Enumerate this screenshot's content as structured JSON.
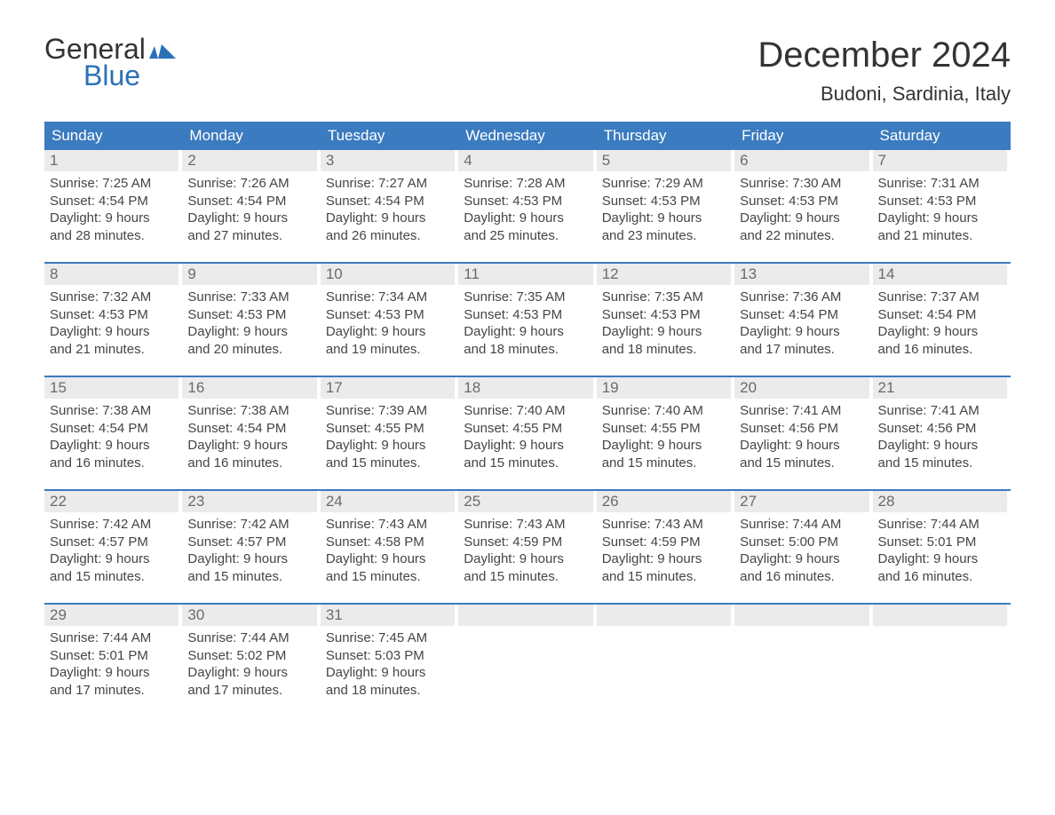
{
  "logo": {
    "line1": "General",
    "line2": "Blue"
  },
  "title": "December 2024",
  "location": "Budoni, Sardinia, Italy",
  "colors": {
    "header_bg": "#3b7bbf",
    "header_text": "#ffffff",
    "daynum_bg": "#ebebeb",
    "daynum_text": "#6b6b6b",
    "body_text": "#454545",
    "accent": "#2a71b8",
    "page_bg": "#ffffff",
    "week_border": "#3b7bbf"
  },
  "typography": {
    "title_fontsize": 40,
    "location_fontsize": 22,
    "dayhead_fontsize": 17,
    "daynum_fontsize": 17,
    "body_fontsize": 15
  },
  "day_headers": [
    "Sunday",
    "Monday",
    "Tuesday",
    "Wednesday",
    "Thursday",
    "Friday",
    "Saturday"
  ],
  "weeks": [
    [
      {
        "n": "1",
        "sunrise": "Sunrise: 7:25 AM",
        "sunset": "Sunset: 4:54 PM",
        "dl1": "Daylight: 9 hours",
        "dl2": "and 28 minutes."
      },
      {
        "n": "2",
        "sunrise": "Sunrise: 7:26 AM",
        "sunset": "Sunset: 4:54 PM",
        "dl1": "Daylight: 9 hours",
        "dl2": "and 27 minutes."
      },
      {
        "n": "3",
        "sunrise": "Sunrise: 7:27 AM",
        "sunset": "Sunset: 4:54 PM",
        "dl1": "Daylight: 9 hours",
        "dl2": "and 26 minutes."
      },
      {
        "n": "4",
        "sunrise": "Sunrise: 7:28 AM",
        "sunset": "Sunset: 4:53 PM",
        "dl1": "Daylight: 9 hours",
        "dl2": "and 25 minutes."
      },
      {
        "n": "5",
        "sunrise": "Sunrise: 7:29 AM",
        "sunset": "Sunset: 4:53 PM",
        "dl1": "Daylight: 9 hours",
        "dl2": "and 23 minutes."
      },
      {
        "n": "6",
        "sunrise": "Sunrise: 7:30 AM",
        "sunset": "Sunset: 4:53 PM",
        "dl1": "Daylight: 9 hours",
        "dl2": "and 22 minutes."
      },
      {
        "n": "7",
        "sunrise": "Sunrise: 7:31 AM",
        "sunset": "Sunset: 4:53 PM",
        "dl1": "Daylight: 9 hours",
        "dl2": "and 21 minutes."
      }
    ],
    [
      {
        "n": "8",
        "sunrise": "Sunrise: 7:32 AM",
        "sunset": "Sunset: 4:53 PM",
        "dl1": "Daylight: 9 hours",
        "dl2": "and 21 minutes."
      },
      {
        "n": "9",
        "sunrise": "Sunrise: 7:33 AM",
        "sunset": "Sunset: 4:53 PM",
        "dl1": "Daylight: 9 hours",
        "dl2": "and 20 minutes."
      },
      {
        "n": "10",
        "sunrise": "Sunrise: 7:34 AM",
        "sunset": "Sunset: 4:53 PM",
        "dl1": "Daylight: 9 hours",
        "dl2": "and 19 minutes."
      },
      {
        "n": "11",
        "sunrise": "Sunrise: 7:35 AM",
        "sunset": "Sunset: 4:53 PM",
        "dl1": "Daylight: 9 hours",
        "dl2": "and 18 minutes."
      },
      {
        "n": "12",
        "sunrise": "Sunrise: 7:35 AM",
        "sunset": "Sunset: 4:53 PM",
        "dl1": "Daylight: 9 hours",
        "dl2": "and 18 minutes."
      },
      {
        "n": "13",
        "sunrise": "Sunrise: 7:36 AM",
        "sunset": "Sunset: 4:54 PM",
        "dl1": "Daylight: 9 hours",
        "dl2": "and 17 minutes."
      },
      {
        "n": "14",
        "sunrise": "Sunrise: 7:37 AM",
        "sunset": "Sunset: 4:54 PM",
        "dl1": "Daylight: 9 hours",
        "dl2": "and 16 minutes."
      }
    ],
    [
      {
        "n": "15",
        "sunrise": "Sunrise: 7:38 AM",
        "sunset": "Sunset: 4:54 PM",
        "dl1": "Daylight: 9 hours",
        "dl2": "and 16 minutes."
      },
      {
        "n": "16",
        "sunrise": "Sunrise: 7:38 AM",
        "sunset": "Sunset: 4:54 PM",
        "dl1": "Daylight: 9 hours",
        "dl2": "and 16 minutes."
      },
      {
        "n": "17",
        "sunrise": "Sunrise: 7:39 AM",
        "sunset": "Sunset: 4:55 PM",
        "dl1": "Daylight: 9 hours",
        "dl2": "and 15 minutes."
      },
      {
        "n": "18",
        "sunrise": "Sunrise: 7:40 AM",
        "sunset": "Sunset: 4:55 PM",
        "dl1": "Daylight: 9 hours",
        "dl2": "and 15 minutes."
      },
      {
        "n": "19",
        "sunrise": "Sunrise: 7:40 AM",
        "sunset": "Sunset: 4:55 PM",
        "dl1": "Daylight: 9 hours",
        "dl2": "and 15 minutes."
      },
      {
        "n": "20",
        "sunrise": "Sunrise: 7:41 AM",
        "sunset": "Sunset: 4:56 PM",
        "dl1": "Daylight: 9 hours",
        "dl2": "and 15 minutes."
      },
      {
        "n": "21",
        "sunrise": "Sunrise: 7:41 AM",
        "sunset": "Sunset: 4:56 PM",
        "dl1": "Daylight: 9 hours",
        "dl2": "and 15 minutes."
      }
    ],
    [
      {
        "n": "22",
        "sunrise": "Sunrise: 7:42 AM",
        "sunset": "Sunset: 4:57 PM",
        "dl1": "Daylight: 9 hours",
        "dl2": "and 15 minutes."
      },
      {
        "n": "23",
        "sunrise": "Sunrise: 7:42 AM",
        "sunset": "Sunset: 4:57 PM",
        "dl1": "Daylight: 9 hours",
        "dl2": "and 15 minutes."
      },
      {
        "n": "24",
        "sunrise": "Sunrise: 7:43 AM",
        "sunset": "Sunset: 4:58 PM",
        "dl1": "Daylight: 9 hours",
        "dl2": "and 15 minutes."
      },
      {
        "n": "25",
        "sunrise": "Sunrise: 7:43 AM",
        "sunset": "Sunset: 4:59 PM",
        "dl1": "Daylight: 9 hours",
        "dl2": "and 15 minutes."
      },
      {
        "n": "26",
        "sunrise": "Sunrise: 7:43 AM",
        "sunset": "Sunset: 4:59 PM",
        "dl1": "Daylight: 9 hours",
        "dl2": "and 15 minutes."
      },
      {
        "n": "27",
        "sunrise": "Sunrise: 7:44 AM",
        "sunset": "Sunset: 5:00 PM",
        "dl1": "Daylight: 9 hours",
        "dl2": "and 16 minutes."
      },
      {
        "n": "28",
        "sunrise": "Sunrise: 7:44 AM",
        "sunset": "Sunset: 5:01 PM",
        "dl1": "Daylight: 9 hours",
        "dl2": "and 16 minutes."
      }
    ],
    [
      {
        "n": "29",
        "sunrise": "Sunrise: 7:44 AM",
        "sunset": "Sunset: 5:01 PM",
        "dl1": "Daylight: 9 hours",
        "dl2": "and 17 minutes."
      },
      {
        "n": "30",
        "sunrise": "Sunrise: 7:44 AM",
        "sunset": "Sunset: 5:02 PM",
        "dl1": "Daylight: 9 hours",
        "dl2": "and 17 minutes."
      },
      {
        "n": "31",
        "sunrise": "Sunrise: 7:45 AM",
        "sunset": "Sunset: 5:03 PM",
        "dl1": "Daylight: 9 hours",
        "dl2": "and 18 minutes."
      },
      {
        "empty": true
      },
      {
        "empty": true
      },
      {
        "empty": true
      },
      {
        "empty": true
      }
    ]
  ]
}
